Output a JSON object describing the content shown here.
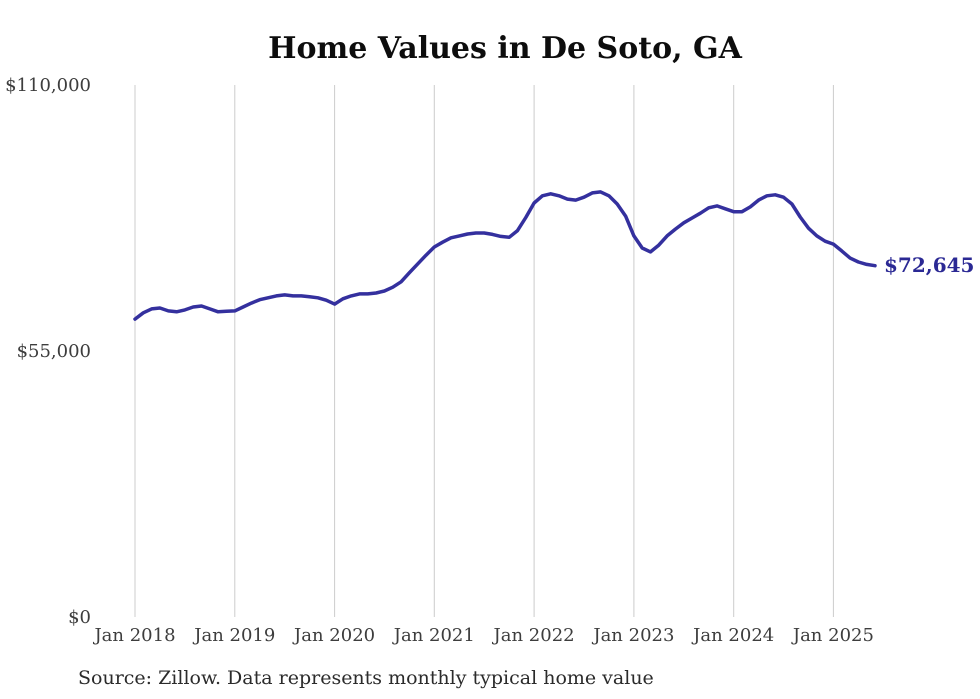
{
  "title": "Home Values in De Soto, GA",
  "source_note": "Source: Zillow. Data represents monthly typical home value",
  "colors": {
    "line": "#34309e",
    "end_label": "#2b2994",
    "grid": "#cccccc",
    "axis_text": "#3d3d3d",
    "title_text": "#0d0d0d"
  },
  "chart_data": {
    "type": "line",
    "title": "Home Values in De Soto, GA",
    "xlabel": "",
    "ylabel": "",
    "ylim": [
      0,
      110000
    ],
    "grid": "vertical",
    "legend": "none",
    "last_value_label": "$72,645",
    "yticks": [
      {
        "value": 0,
        "label": "$0"
      },
      {
        "value": 55000,
        "label": "$55,000"
      },
      {
        "value": 110000,
        "label": "$110,000"
      }
    ],
    "xticks": [
      {
        "month_index": 0,
        "label": "Jan 2018"
      },
      {
        "month_index": 12,
        "label": "Jan 2019"
      },
      {
        "month_index": 24,
        "label": "Jan 2020"
      },
      {
        "month_index": 36,
        "label": "Jan 2021"
      },
      {
        "month_index": 48,
        "label": "Jan 2022"
      },
      {
        "month_index": 60,
        "label": "Jan 2023"
      },
      {
        "month_index": 72,
        "label": "Jan 2024"
      },
      {
        "month_index": 84,
        "label": "Jan 2025"
      }
    ],
    "x": [
      "2018-01",
      "2018-02",
      "2018-03",
      "2018-04",
      "2018-05",
      "2018-06",
      "2018-07",
      "2018-08",
      "2018-09",
      "2018-10",
      "2018-11",
      "2018-12",
      "2019-01",
      "2019-02",
      "2019-03",
      "2019-04",
      "2019-05",
      "2019-06",
      "2019-07",
      "2019-08",
      "2019-09",
      "2019-10",
      "2019-11",
      "2019-12",
      "2020-01",
      "2020-02",
      "2020-03",
      "2020-04",
      "2020-05",
      "2020-06",
      "2020-07",
      "2020-08",
      "2020-09",
      "2020-10",
      "2020-11",
      "2020-12",
      "2021-01",
      "2021-02",
      "2021-03",
      "2021-04",
      "2021-05",
      "2021-06",
      "2021-07",
      "2021-08",
      "2021-09",
      "2021-10",
      "2021-11",
      "2021-12",
      "2022-01",
      "2022-02",
      "2022-03",
      "2022-04",
      "2022-05",
      "2022-06",
      "2022-07",
      "2022-08",
      "2022-09",
      "2022-10",
      "2022-11",
      "2022-12",
      "2023-01",
      "2023-02",
      "2023-03",
      "2023-04",
      "2023-05",
      "2023-06",
      "2023-07",
      "2023-08",
      "2023-09",
      "2023-10",
      "2023-11",
      "2023-12",
      "2024-01",
      "2024-02",
      "2024-03",
      "2024-04",
      "2024-05",
      "2024-06",
      "2024-07",
      "2024-08",
      "2024-09",
      "2024-10",
      "2024-11",
      "2024-12",
      "2025-01",
      "2025-02",
      "2025-03",
      "2025-04",
      "2025-05",
      "2025-06"
    ],
    "values": [
      61600,
      62900,
      63700,
      63900,
      63300,
      63100,
      63500,
      64100,
      64300,
      63700,
      63100,
      63200,
      63300,
      64100,
      64900,
      65600,
      66000,
      66400,
      66600,
      66400,
      66400,
      66200,
      66000,
      65500,
      64700,
      65800,
      66400,
      66800,
      66800,
      67000,
      67400,
      68200,
      69300,
      71200,
      73000,
      74800,
      76500,
      77500,
      78400,
      78800,
      79200,
      79400,
      79400,
      79100,
      78700,
      78500,
      79900,
      82600,
      85600,
      87100,
      87500,
      87100,
      86400,
      86200,
      86800,
      87700,
      87900,
      87100,
      85400,
      82900,
      78800,
      76300,
      75500,
      76900,
      78800,
      80200,
      81500,
      82500,
      83500,
      84600,
      85000,
      84400,
      83800,
      83800,
      84800,
      86200,
      87100,
      87300,
      86800,
      85400,
      82700,
      80400,
      78800,
      77700,
      77100,
      75700,
      74200,
      73400,
      72900,
      72645
    ]
  }
}
